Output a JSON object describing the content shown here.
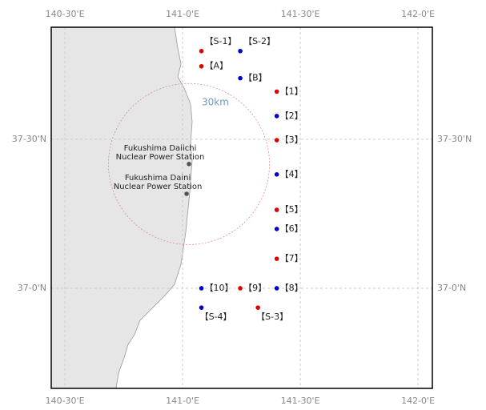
{
  "map": {
    "xlim": [
      140.442,
      142.061
    ],
    "ylim": [
      36.664,
      37.876
    ],
    "xticks": [
      {
        "value": 140.5,
        "label": "140-30'E"
      },
      {
        "value": 141.0,
        "label": "141-0'E"
      },
      {
        "value": 141.5,
        "label": "141-30'E"
      },
      {
        "value": 142.0,
        "label": "142-0'E"
      }
    ],
    "yticks": [
      {
        "value": 37.5,
        "label": "37-30'N"
      },
      {
        "value": 37.0,
        "label": "37-0'N"
      }
    ],
    "grid": true,
    "stations": [
      {
        "label": "【S-1】",
        "lon": 141.08,
        "lat": 37.796,
        "color": "#e00000",
        "label_side": "right"
      },
      {
        "label": "【S-2】",
        "lon": 141.245,
        "lat": 37.796,
        "color": "#0000d0",
        "label_side": "left"
      },
      {
        "label": "【A】",
        "lon": 141.08,
        "lat": 37.745,
        "color": "#e00000",
        "label_side": "right"
      },
      {
        "label": "【B】",
        "lon": 141.245,
        "lat": 37.705,
        "color": "#0000d0",
        "label_side": "right"
      },
      {
        "label": "【1】",
        "lon": 141.4,
        "lat": 37.66,
        "color": "#e00000",
        "label_side": "right"
      },
      {
        "label": "【2】",
        "lon": 141.4,
        "lat": 37.578,
        "color": "#0000d0",
        "label_side": "right"
      },
      {
        "label": "【3】",
        "lon": 141.4,
        "lat": 37.497,
        "color": "#e00000",
        "label_side": "right"
      },
      {
        "label": "【4】",
        "lon": 141.4,
        "lat": 37.382,
        "color": "#0000d0",
        "label_side": "right"
      },
      {
        "label": "【5】",
        "lon": 141.4,
        "lat": 37.263,
        "color": "#e00000",
        "label_side": "right"
      },
      {
        "label": "【6】",
        "lon": 141.4,
        "lat": 37.199,
        "color": "#0000d0",
        "label_side": "right"
      },
      {
        "label": "【7】",
        "lon": 141.4,
        "lat": 37.099,
        "color": "#e00000",
        "label_side": "right"
      },
      {
        "label": "【8】",
        "lon": 141.4,
        "lat": 37.0,
        "color": "#0000d0",
        "label_side": "right"
      },
      {
        "label": "【9】",
        "lon": 141.245,
        "lat": 37.0,
        "color": "#e00000",
        "label_side": "right"
      },
      {
        "label": "【10】",
        "lon": 141.08,
        "lat": 37.0,
        "color": "#0000d0",
        "label_side": "right"
      },
      {
        "label": "【S-4】",
        "lon": 141.08,
        "lat": 36.935,
        "color": "#0000d0",
        "label_side": "below"
      },
      {
        "label": "【S-3】",
        "lon": 141.32,
        "lat": 36.935,
        "color": "#e00000",
        "label_side": "below"
      }
    ],
    "plants": [
      {
        "lines": [
          "Fukushima Daiichi",
          "Nuclear Power Station"
        ],
        "lon": 141.027,
        "lat": 37.417
      },
      {
        "lines": [
          "Fukushima Daini",
          "Nuclear Power Station"
        ],
        "lon": 141.017,
        "lat": 37.317
      }
    ],
    "circle": {
      "label": "30km",
      "radius_km": 30
    }
  }
}
